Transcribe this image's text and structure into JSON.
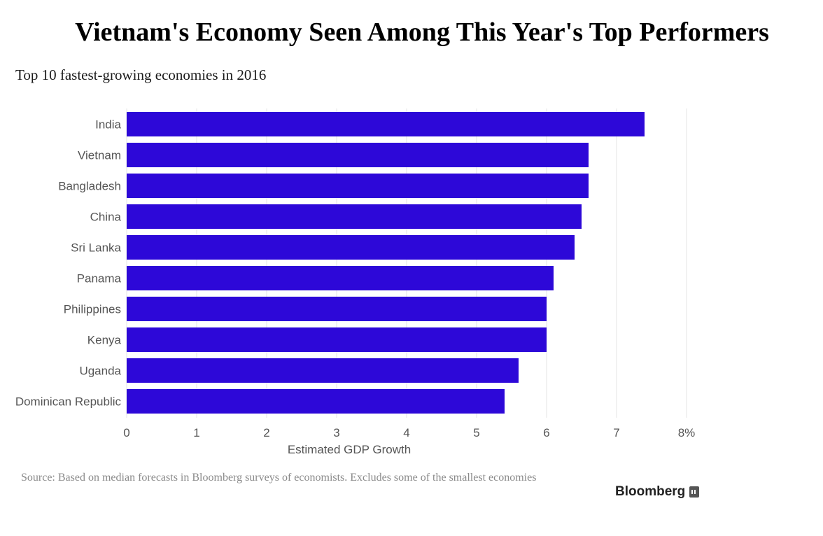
{
  "header": {
    "title": "Vietnam's Economy Seen Among This Year's Top Performers",
    "subtitle": "Top 10 fastest-growing economies in 2016"
  },
  "footer": {
    "source": "Source: Based on median forecasts in Bloomberg surveys of economists. Excludes some of the smallest economies",
    "brand": "Bloomberg"
  },
  "colors": {
    "bar": "#2d08d8",
    "grid": "#e6e6e6",
    "label": "#555555"
  },
  "chart_data": {
    "type": "bar",
    "orientation": "horizontal",
    "title": "Top 10 fastest-growing economies in 2016",
    "xlabel": "Estimated GDP Growth",
    "categories": [
      "India",
      "Vietnam",
      "Bangladesh",
      "China",
      "Sri Lanka",
      "Panama",
      "Philippines",
      "Kenya",
      "Uganda",
      "Dominican Republic"
    ],
    "values": [
      7.4,
      6.6,
      6.6,
      6.5,
      6.4,
      6.1,
      6.0,
      6.0,
      5.6,
      5.4
    ],
    "xlim": [
      0,
      8
    ],
    "xticks": [
      0,
      1,
      2,
      3,
      4,
      5,
      6,
      7,
      8
    ],
    "xtick_labels": [
      "0",
      "1",
      "2",
      "3",
      "4",
      "5",
      "6",
      "7",
      "8%"
    ],
    "grid": true,
    "legend": "none"
  }
}
